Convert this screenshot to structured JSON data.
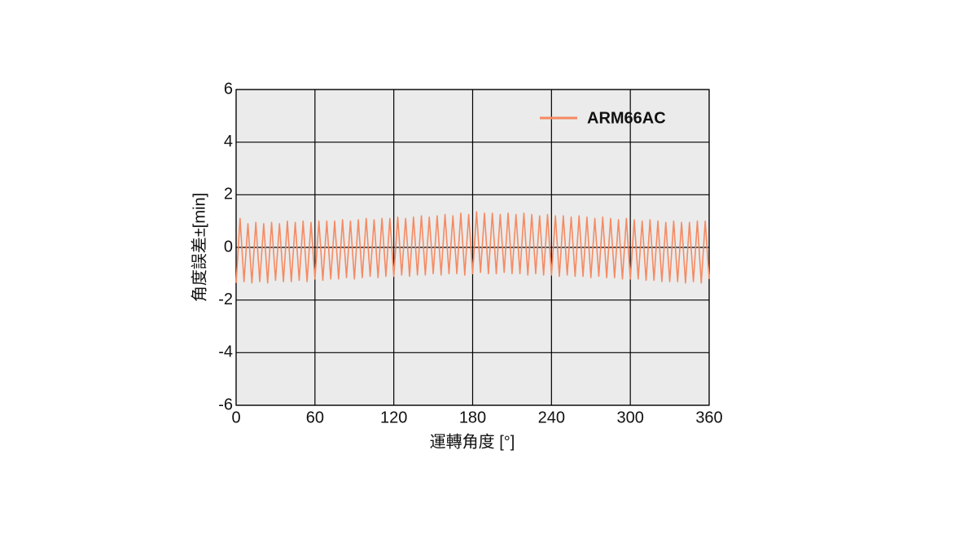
{
  "chart_data": {
    "type": "line",
    "x": [
      0,
      3,
      6,
      9,
      12,
      15,
      18,
      21,
      24,
      27,
      30,
      33,
      36,
      39,
      42,
      45,
      48,
      51,
      54,
      57,
      60,
      63,
      66,
      69,
      72,
      75,
      78,
      81,
      84,
      87,
      90,
      93,
      96,
      99,
      102,
      105,
      108,
      111,
      114,
      117,
      120,
      123,
      126,
      129,
      132,
      135,
      138,
      141,
      144,
      147,
      150,
      153,
      156,
      159,
      162,
      165,
      168,
      171,
      174,
      177,
      180,
      183,
      186,
      189,
      192,
      195,
      198,
      201,
      204,
      207,
      210,
      213,
      216,
      219,
      222,
      225,
      228,
      231,
      234,
      237,
      240,
      243,
      246,
      249,
      252,
      255,
      258,
      261,
      264,
      267,
      270,
      273,
      276,
      279,
      282,
      285,
      288,
      291,
      294,
      297,
      300,
      303,
      306,
      309,
      312,
      315,
      318,
      321,
      324,
      327,
      330,
      333,
      336,
      339,
      342,
      345,
      348,
      351,
      354,
      357,
      360
    ],
    "series": [
      {
        "name": "ARM66AC",
        "color": "#f58a62",
        "values": [
          -1.35,
          1.1,
          -1.3,
          0.9,
          -1.35,
          0.95,
          -1.3,
          0.9,
          -1.35,
          0.95,
          -1.25,
          0.9,
          -1.3,
          1.0,
          -1.3,
          0.95,
          -1.25,
          1.0,
          -1.3,
          0.95,
          -1.2,
          1.0,
          -1.25,
          1.0,
          -1.2,
          1.0,
          -1.2,
          1.05,
          -1.15,
          1.0,
          -1.2,
          1.05,
          -1.15,
          1.1,
          -1.1,
          1.05,
          -1.15,
          1.1,
          -1.1,
          1.1,
          -1.1,
          1.15,
          -1.05,
          1.1,
          -1.1,
          1.15,
          -1.05,
          1.2,
          -1.05,
          1.15,
          -1.0,
          1.2,
          -1.05,
          1.25,
          -1.0,
          1.2,
          -1.0,
          1.3,
          -1.05,
          1.25,
          -1.0,
          1.35,
          -0.95,
          1.3,
          -1.0,
          1.3,
          -1.0,
          1.25,
          -0.95,
          1.3,
          -1.0,
          1.25,
          -1.0,
          1.3,
          -1.05,
          1.25,
          -1.0,
          1.2,
          -1.05,
          1.25,
          -1.05,
          1.2,
          -1.1,
          1.2,
          -1.05,
          1.15,
          -1.1,
          1.2,
          -1.1,
          1.15,
          -1.15,
          1.1,
          -1.1,
          1.15,
          -1.15,
          1.1,
          -1.15,
          1.05,
          -1.2,
          1.1,
          -1.2,
          1.05,
          -1.2,
          1.0,
          -1.25,
          1.05,
          -1.25,
          1.0,
          -1.3,
          0.95,
          -1.3,
          1.0,
          -1.3,
          0.95,
          -1.35,
          0.95,
          -1.3,
          1.0,
          -1.35,
          1.0,
          -1.2
        ]
      }
    ],
    "xlabel": "運轉角度 [°]",
    "ylabel": "角度誤差±[min]",
    "xlim": [
      0,
      360
    ],
    "xticks": [
      0,
      60,
      120,
      180,
      240,
      300,
      360
    ],
    "ylim": [
      -6,
      6
    ],
    "yticks": [
      -6,
      -4,
      -2,
      0,
      2,
      4,
      6
    ],
    "grid": true,
    "legend": "upper right"
  }
}
